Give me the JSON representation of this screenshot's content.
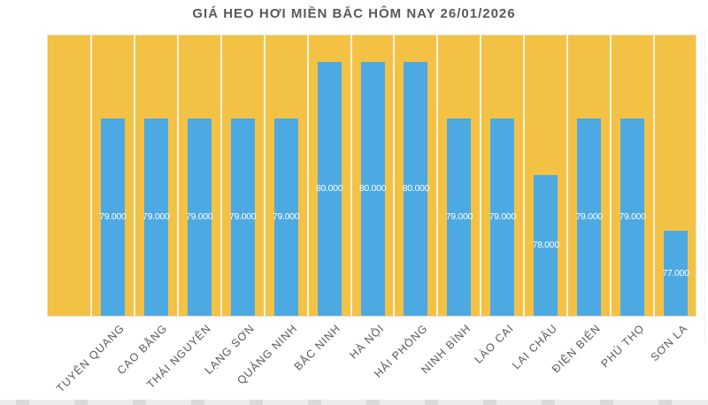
{
  "chart_data": {
    "type": "bar",
    "title": "GIÁ HEO HƠI MIỀN BẮC HÔM NAY 26/01/2026",
    "categories": [
      "TUYÊN QUANG",
      "CAO BẰNG",
      "THÁI NGUYÊN",
      "LẠNG SƠN",
      "QUẢNG NINH",
      "BẮC NINH",
      "HÀ NỘI",
      "HẢI PHÒNG",
      "NINH BÌNH",
      "LÀO CAI",
      "LAI CHÂU",
      "ĐIỆN BIÊN",
      "PHÚ THỌ",
      "SƠN LA"
    ],
    "values": [
      79000,
      79000,
      79000,
      79000,
      79000,
      80000,
      80000,
      80000,
      79000,
      79000,
      78000,
      79000,
      79000,
      77000
    ],
    "value_labels": [
      "79.000",
      "79.000",
      "79.000",
      "79.000",
      "79.000",
      "80.000",
      "80.000",
      "80.000",
      "79.000",
      "79.000",
      "78.000",
      "79.000",
      "79.000",
      "77.000"
    ],
    "xlabel": "",
    "ylabel": "",
    "ylim": [
      75500,
      80500
    ],
    "y_axis_visible": false,
    "grid": "vertical-category-separators",
    "legend_position": "none",
    "data_label_position": "center-inside-bar",
    "leading_empty_slots": 1,
    "colors": {
      "plot_background": "#F3C245",
      "bar_fill": "#4DA9E2",
      "gridline": "#FFFFFF",
      "title_text": "#595959",
      "axis_label_text": "#595959",
      "value_label_text": "#FFFFFF"
    }
  }
}
